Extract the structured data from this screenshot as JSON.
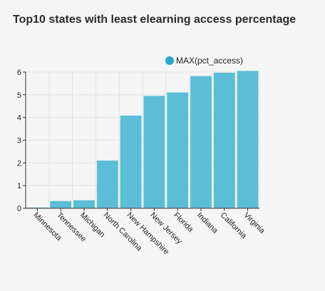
{
  "chart_data": {
    "type": "bar",
    "title": "Top10 states with least elearning access percentage",
    "categories": [
      "Minnesota",
      "Tennessee",
      "Michigan",
      "North Carolina",
      "New Hampshire",
      "New Jersey",
      "Florida",
      "Indiana",
      "California",
      "Virginia"
    ],
    "series": [
      {
        "name": "MAX(pct_access)",
        "values": [
          0.03,
          0.32,
          0.35,
          2.1,
          4.08,
          4.95,
          5.1,
          5.82,
          5.97,
          6.05
        ]
      }
    ],
    "xlabel": "",
    "ylabel": "",
    "ylim": [
      0,
      6
    ],
    "yticks": [
      "0",
      "1",
      "2",
      "3",
      "4",
      "5",
      "6"
    ],
    "grid": true,
    "legend_position": "top-right",
    "bar_color": "#5bbdd6",
    "legend_color": "#29a9c9"
  }
}
